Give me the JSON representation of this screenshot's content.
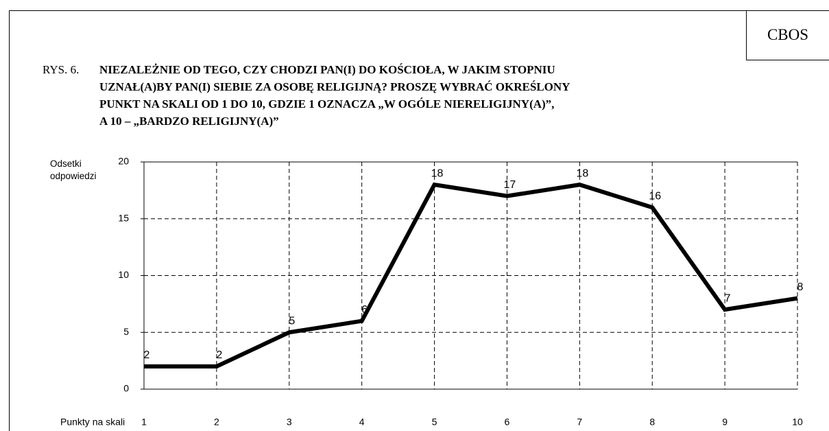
{
  "badge": "CBOS",
  "chart_data": {
    "type": "line",
    "figure_label": "RYS. 6.",
    "title": [
      "NIEZALEŻNIE OD TEGO, CZY CHODZI PAN(I) DO KOŚCIOŁA, W JAKIM STOPNIU",
      "UZNAŁ(A)BY PAN(I) SIEBIE ZA OSOBĘ RELIGIJNĄ? PROSZĘ WYBRAĆ OKREŚLONY",
      "PUNKT NA SKALI OD 1 DO 10, GDZIE 1 OZNACZA „W OGÓLE NIERELIGIJNY(A)”,",
      "A 10 – „BARDZO RELIGIJNY(A)”"
    ],
    "ylabel": "Odsetki odpowiedzi",
    "xlabel": "Punkty na skali",
    "x": [
      1,
      2,
      3,
      4,
      5,
      6,
      7,
      8,
      9,
      10
    ],
    "series": [
      {
        "name": null,
        "color": "#000000",
        "values": [
          2,
          2,
          5,
          6,
          18,
          17,
          18,
          16,
          7,
          8
        ]
      }
    ],
    "xlim": [
      1,
      10
    ],
    "xticks": [
      1,
      2,
      3,
      4,
      5,
      6,
      7,
      8,
      9,
      10
    ],
    "ylim": [
      0,
      20
    ],
    "yticks": [
      0,
      5,
      10,
      15,
      20
    ],
    "grid": true
  }
}
